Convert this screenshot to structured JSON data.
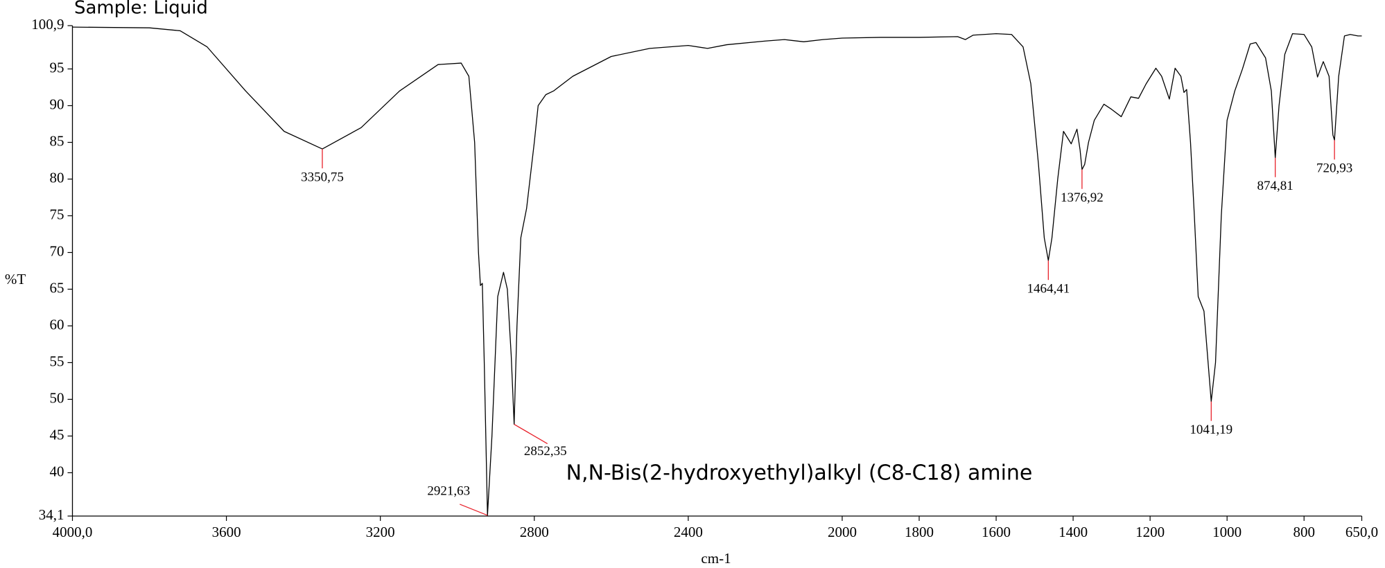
{
  "chart_data": {
    "type": "line",
    "title": "Sample: Liquid",
    "subtitle": "N,N-Bis(2-hydroxyethyl)alkyl (C8-C18) amine",
    "x_label": "cm-1",
    "y_label": "%T",
    "color": "#000000",
    "annotation_color": "#e8202a",
    "xlim": [
      4000,
      650
    ],
    "ylim": [
      34.1,
      100.9
    ],
    "xticks": [
      {
        "value": 4000,
        "label": "4000,0"
      },
      3600,
      3200,
      2800,
      2400,
      2000,
      1800,
      1600,
      1400,
      1200,
      1000,
      800,
      {
        "value": 650,
        "label": "650,0"
      }
    ],
    "yticks": [
      {
        "value": 34.1,
        "label": "34,1"
      },
      40,
      45,
      50,
      55,
      60,
      65,
      70,
      75,
      80,
      85,
      90,
      95,
      {
        "value": 100.9,
        "label": "100,9"
      }
    ],
    "x": [
      4000,
      3800,
      3720,
      3650,
      3550,
      3450,
      3350.75,
      3250,
      3150,
      3050,
      2990,
      2970,
      2955,
      2945,
      2940,
      2935,
      2930,
      2921.63,
      2910,
      2895,
      2880,
      2870,
      2860,
      2852.35,
      2845,
      2835,
      2820,
      2800,
      2790,
      2770,
      2750,
      2700,
      2600,
      2500,
      2400,
      2350,
      2300,
      2200,
      2150,
      2100,
      2050,
      2000,
      1900,
      1800,
      1700,
      1680,
      1660,
      1600,
      1560,
      1530,
      1510,
      1490,
      1475,
      1464.41,
      1455,
      1440,
      1425,
      1405,
      1390,
      1382,
      1376.92,
      1370,
      1360,
      1345,
      1320,
      1300,
      1275,
      1250,
      1230,
      1210,
      1185,
      1170,
      1150,
      1135,
      1120,
      1112,
      1105,
      1095,
      1085,
      1075,
      1060,
      1041.19,
      1030,
      1015,
      1000,
      980,
      960,
      940,
      925,
      900,
      885,
      874.81,
      865,
      850,
      830,
      800,
      780,
      765,
      750,
      735,
      725,
      720.93,
      710,
      695,
      680,
      660,
      650
    ],
    "values": [
      100.7,
      100.6,
      100.2,
      98,
      92,
      86.5,
      84.1,
      87,
      92,
      95.6,
      95.8,
      94,
      85,
      70,
      65.5,
      65.8,
      55,
      34.2,
      45,
      64,
      67.3,
      65,
      56,
      46.6,
      60,
      72,
      76,
      85,
      90,
      91.5,
      92,
      94,
      96.7,
      97.8,
      98.2,
      97.8,
      98.3,
      98.8,
      99,
      98.7,
      99,
      99.2,
      99.3,
      99.3,
      99.4,
      99,
      99.6,
      99.8,
      99.7,
      98,
      93,
      82,
      72,
      68.9,
      72,
      80,
      86.5,
      84.8,
      86.8,
      84,
      81.3,
      82,
      85,
      88,
      90.2,
      89.5,
      88.5,
      91.2,
      91,
      93,
      95.1,
      94,
      90.9,
      95.1,
      94,
      91.8,
      92.2,
      85,
      75,
      64,
      62,
      49.7,
      55,
      75,
      88,
      92,
      95,
      98.4,
      98.6,
      96.5,
      92,
      82.9,
      90,
      97,
      99.8,
      99.7,
      98,
      93.9,
      96,
      94,
      86,
      85.3,
      94,
      99.5,
      99.7,
      99.5,
      99.5
    ],
    "annotations": [
      {
        "x": 3350.75,
        "y": 84.1,
        "label": "3350,75"
      },
      {
        "x": 2921.63,
        "y": 34.2,
        "label": "2921,63"
      },
      {
        "x": 2852.35,
        "y": 46.6,
        "label": "2852,35"
      },
      {
        "x": 1464.41,
        "y": 68.9,
        "label": "1464,41"
      },
      {
        "x": 1376.92,
        "y": 81.3,
        "label": "1376,92"
      },
      {
        "x": 1041.19,
        "y": 49.7,
        "label": "1041,19"
      },
      {
        "x": 874.81,
        "y": 82.9,
        "label": "874,81"
      },
      {
        "x": 720.93,
        "y": 85.3,
        "label": "720,93"
      }
    ]
  }
}
